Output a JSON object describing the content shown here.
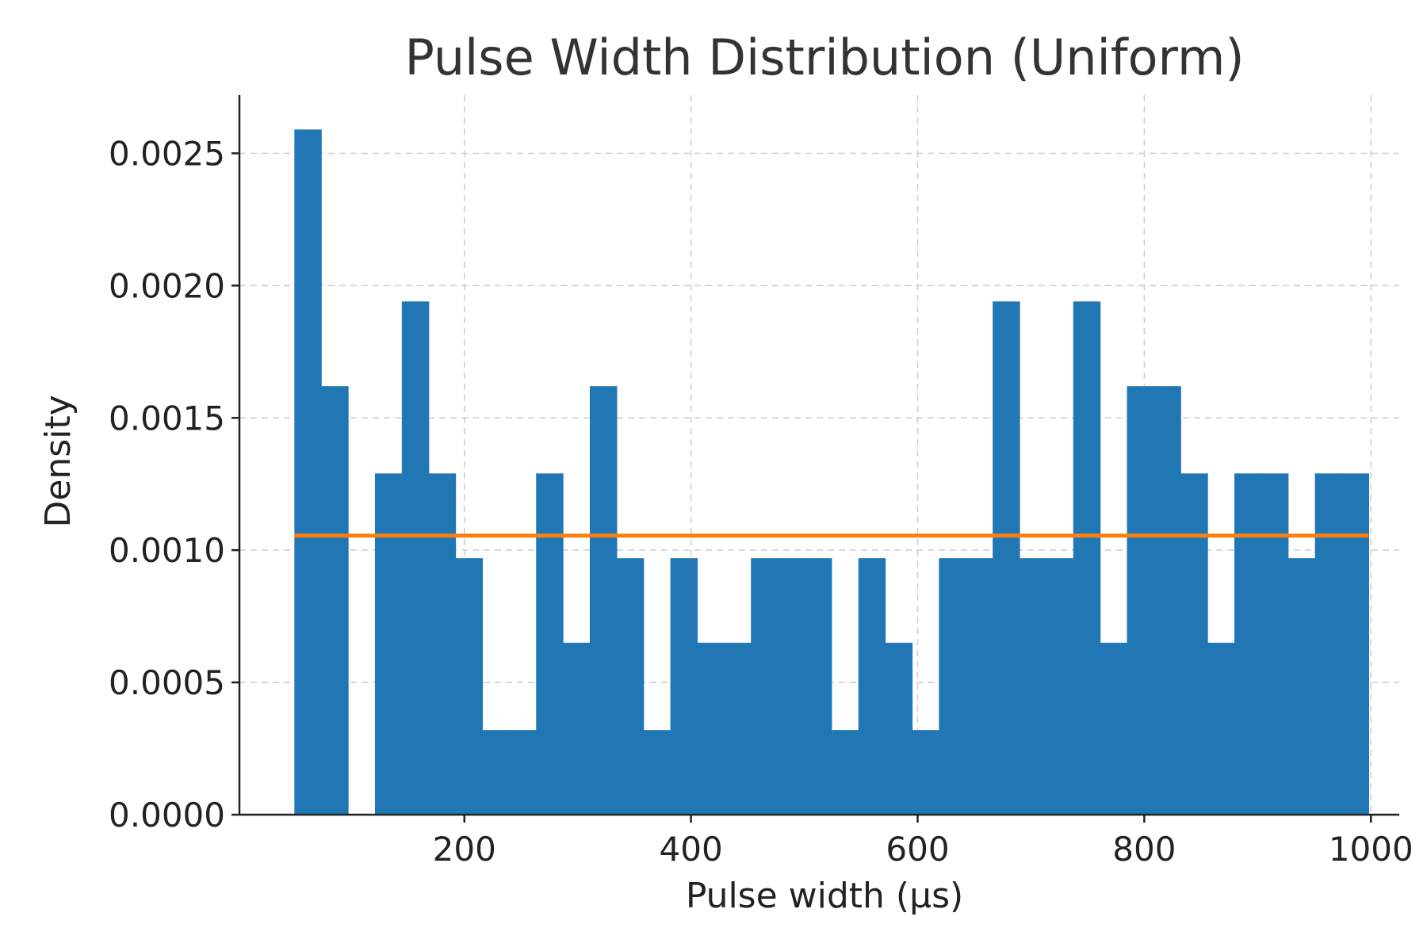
{
  "chart_data": {
    "type": "bar",
    "title": "Pulse Width Distribution (Uniform)",
    "xlabel": "Pulse width (µs)",
    "ylabel": "Density",
    "xlim": [
      1.5,
      1025
    ],
    "ylim": [
      0,
      0.00272
    ],
    "xticks": [
      200,
      400,
      600,
      800,
      1000
    ],
    "xtick_labels": [
      "200",
      "400",
      "600",
      "800",
      "1000"
    ],
    "yticks": [
      0,
      0.0005,
      0.001,
      0.0015,
      0.002,
      0.0025
    ],
    "ytick_labels": [
      "0.0000",
      "0.0005",
      "0.0010",
      "0.0015",
      "0.0020",
      "0.0025"
    ],
    "grid": true,
    "colors": {
      "bars": "#2077b4",
      "line": "#ff7f0e"
    },
    "bin_edges": [
      50.0,
      73.7,
      97.4,
      121.1,
      144.8,
      168.5,
      192.2,
      215.9,
      239.6,
      263.3,
      287.0,
      310.7,
      334.4,
      358.1,
      381.8,
      405.5,
      429.2,
      452.9,
      476.6,
      500.3,
      524.0,
      547.7,
      571.4,
      595.1,
      618.8,
      642.5,
      666.2,
      689.9,
      713.6,
      737.3,
      761.0,
      784.7,
      808.4,
      832.1,
      855.8,
      879.5,
      903.2,
      926.9,
      950.6,
      974.3,
      998.0
    ],
    "series": [
      {
        "type": "histogram",
        "values": [
          0.00259,
          0.00162,
          0.0,
          0.00129,
          0.00194,
          0.00129,
          0.00097,
          0.00032,
          0.00032,
          0.00129,
          0.00065,
          0.00162,
          0.00097,
          0.00032,
          0.00097,
          0.00065,
          0.00065,
          0.00097,
          0.00097,
          0.00097,
          0.00032,
          0.00097,
          0.00065,
          0.00032,
          0.00097,
          0.00097,
          0.00194,
          0.00097,
          0.00097,
          0.00194,
          0.00065,
          0.00162,
          0.00162,
          0.00129,
          0.00065,
          0.00129,
          0.00129,
          0.00097,
          0.00129,
          0.00129
        ]
      },
      {
        "type": "line",
        "x": [
          50,
          998
        ],
        "y": [
          0.001055,
          0.001055
        ]
      }
    ]
  }
}
